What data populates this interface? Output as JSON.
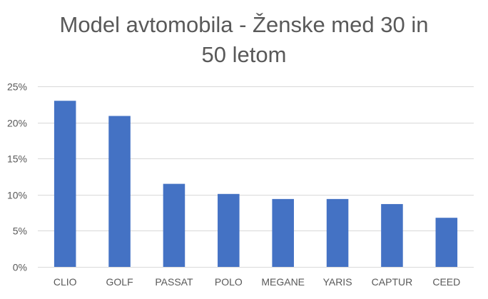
{
  "chart_data": {
    "type": "bar",
    "title_lines": [
      "Model avtomobila - Ženske med 30 in",
      "50 letom"
    ],
    "categories": [
      "CLIO",
      "GOLF",
      "PASSAT",
      "POLO",
      "MEGANE",
      "YARIS",
      "CAPTUR",
      "CEED"
    ],
    "values": [
      23.0,
      20.9,
      11.5,
      10.1,
      9.4,
      9.4,
      8.7,
      6.8
    ],
    "value_unit": "%",
    "ylim": [
      0,
      25
    ],
    "yticks": [
      "0%",
      "5%",
      "10%",
      "15%",
      "20%",
      "25%"
    ],
    "grid": true,
    "legend": "none",
    "bar_color": "#4472C4",
    "grid_color": "#D9D9D9"
  }
}
